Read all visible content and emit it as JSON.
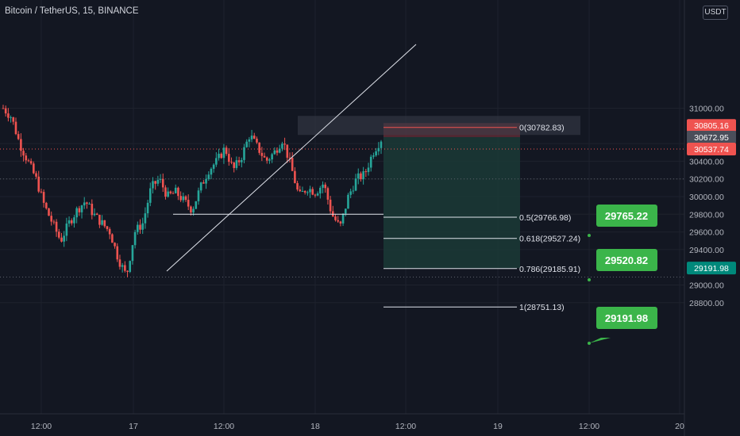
{
  "header": {
    "title": "Bitcoin / TetherUS, 15, BINANCE",
    "currency": "USDT"
  },
  "colors": {
    "background": "#131722",
    "up": "#26a69a",
    "down": "#ef5350",
    "grid": "#1e222d",
    "text": "#b2b5be",
    "callout": "#3bb54a",
    "target_zone": "#1b3a36",
    "stop_zone": "#5a2a34"
  },
  "chart_data": {
    "type": "candlestick",
    "y_axis": {
      "ticks": [
        31000,
        30600,
        30400,
        30200,
        30000,
        29800,
        29600,
        29400,
        29000,
        28800
      ],
      "range": [
        28750,
        31050
      ]
    },
    "x_axis": {
      "ticks": [
        "12:00",
        "17",
        "12:00",
        "18",
        "12:00",
        "19",
        "12:00",
        "20"
      ]
    },
    "price_path": [
      31000,
      30900,
      30600,
      30400,
      30200,
      29900,
      29700,
      29500,
      29700,
      29850,
      29950,
      29800,
      29700,
      29600,
      29300,
      29100,
      29600,
      29700,
      30100,
      30200,
      30000,
      30050,
      29950,
      29850,
      30100,
      30300,
      30400,
      30550,
      30300,
      30450,
      30700,
      30550,
      30400,
      30500,
      30650,
      30350,
      30000,
      30100,
      30050,
      30150,
      29800,
      29650,
      30000,
      30200,
      30250,
      30500,
      30650
    ],
    "price_labels": [
      {
        "value": "30805.16",
        "color": "#ef5350"
      },
      {
        "value": "30672.95",
        "color": "#4a4e5a"
      },
      {
        "value": "30537.74",
        "color": "#ef5350"
      },
      {
        "value": "29191.98",
        "color": "#00897b"
      }
    ],
    "fibonacci": [
      {
        "label": "0(30782.83)",
        "price": 30782.83
      },
      {
        "label": "0.5(29766.98)",
        "price": 29766.98
      },
      {
        "label": "0.618(29527.24)",
        "price": 29527.24
      },
      {
        "label": "0.786(29185.91)",
        "price": 29185.91
      },
      {
        "label": "1(28751.13)",
        "price": 28751.13
      }
    ],
    "targets": [
      "29765.22",
      "29520.82",
      "29191.98"
    ],
    "levels": {
      "entry": 30672.95,
      "stop": 30805.16,
      "target": 29191.98,
      "support": 29800,
      "dotted": [
        30537.74,
        30200,
        29090
      ]
    }
  }
}
